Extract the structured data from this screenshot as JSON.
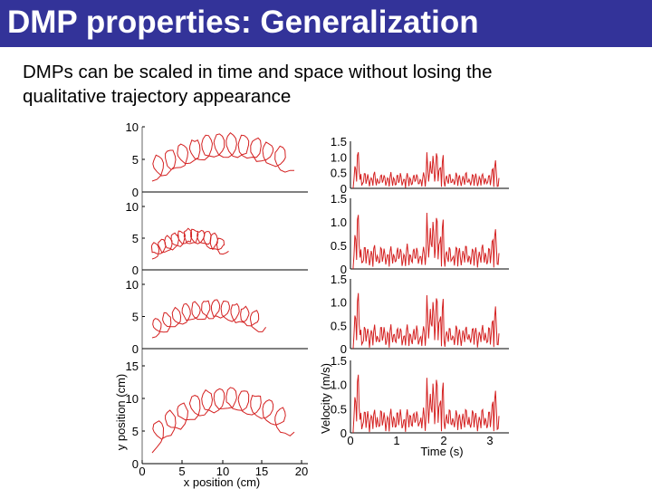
{
  "slide": {
    "title": "DMP properties: Generalization",
    "body_lines": [
      "DMPs can be scaled in time and space without losing the",
      "qualitative trajectory appearance"
    ]
  },
  "colors": {
    "title_bar": "#333399",
    "trace": "#d42020"
  },
  "chart_data": [
    {
      "type": "line",
      "title": "",
      "xlabel": "x position (cm)",
      "ylabel": "y position (cm)",
      "xticks": [
        "0",
        "5",
        "10",
        "15",
        "20"
      ],
      "panels": [
        {
          "yticks": [
            "10",
            "5",
            "0"
          ],
          "ylim": [
            0,
            10
          ]
        },
        {
          "yticks": [
            "10",
            "5",
            "0"
          ],
          "ylim": [
            0,
            10
          ]
        },
        {
          "yticks": [
            "10",
            "5",
            "0"
          ],
          "ylim": [
            0,
            10
          ]
        },
        {
          "yticks": [
            "15",
            "10",
            "5",
            "0"
          ],
          "ylim": [
            0,
            15
          ]
        }
      ],
      "xlim": [
        0,
        20
      ]
    },
    {
      "type": "line",
      "title": "",
      "xlabel": "Time (s)",
      "ylabel": "Velocity (m/s)",
      "xticks": [
        "0",
        "1",
        "2",
        "3"
      ],
      "xlim": [
        0,
        3.3
      ],
      "panels": [
        {
          "yticks": [
            "1.5",
            "1.0",
            "0.5",
            "0"
          ],
          "ylim": [
            0,
            1.5
          ]
        },
        {
          "yticks": [
            "1.5",
            "1.0",
            "0.5",
            "0"
          ],
          "ylim": [
            0,
            1.5
          ]
        },
        {
          "yticks": [
            "1.5",
            "1.0",
            "0.5",
            "0"
          ],
          "ylim": [
            0,
            1.5
          ]
        },
        {
          "yticks": [
            "1.5",
            "1.0",
            "0.5",
            "0"
          ],
          "ylim": [
            0,
            1.5
          ]
        }
      ]
    }
  ]
}
